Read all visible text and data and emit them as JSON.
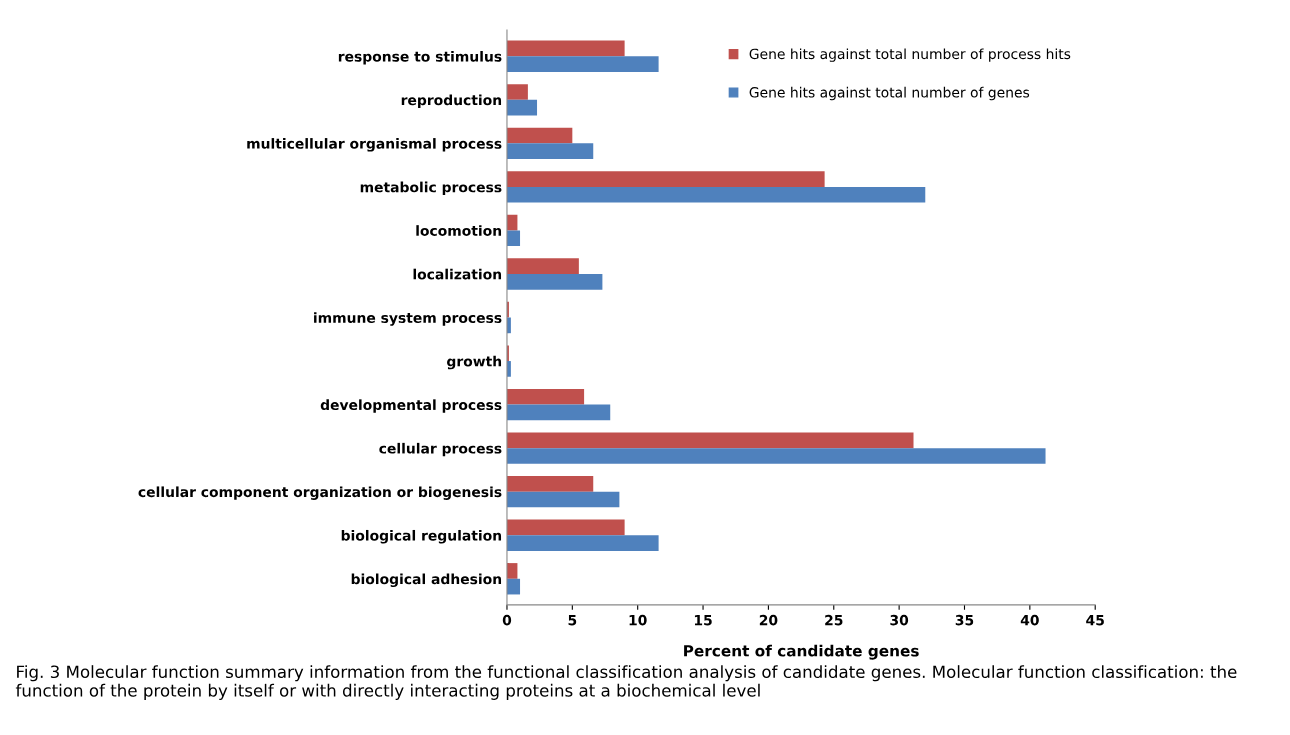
{
  "chart_data": {
    "type": "bar",
    "orientation": "horizontal",
    "categories": [
      "response to stimulus",
      "reproduction",
      "multicellular organismal process",
      "metabolic process",
      "locomotion",
      "localization",
      "immune system process",
      "growth",
      "developmental process",
      "cellular process",
      "cellular component organization or biogenesis",
      "biological regulation",
      "biological adhesion"
    ],
    "series": [
      {
        "name": "Gene hits against total number of process hits",
        "color": "#c0504d",
        "values": [
          9.0,
          1.6,
          5.0,
          24.3,
          0.8,
          5.5,
          0.15,
          0.15,
          5.9,
          31.1,
          6.6,
          9.0,
          0.8
        ]
      },
      {
        "name": "Gene hits against total number of genes",
        "color": "#4f81bd",
        "values": [
          11.6,
          2.3,
          6.6,
          32.0,
          1.0,
          7.3,
          0.3,
          0.3,
          7.9,
          41.2,
          8.6,
          11.6,
          1.0
        ]
      }
    ],
    "xlabel": "Percent of candidate genes",
    "xlim": [
      0,
      45
    ],
    "xticks": [
      0,
      5,
      10,
      15,
      20,
      25,
      30,
      35,
      40,
      45
    ],
    "legend": "top right",
    "grid": false,
    "annotations": [
      "Fig. 3 Molecular function summary information from the functional classification analysis of candidate genes. Molecular function classification: the function of the protein by itself or with directly interacting proteins at a biochemical level"
    ]
  }
}
